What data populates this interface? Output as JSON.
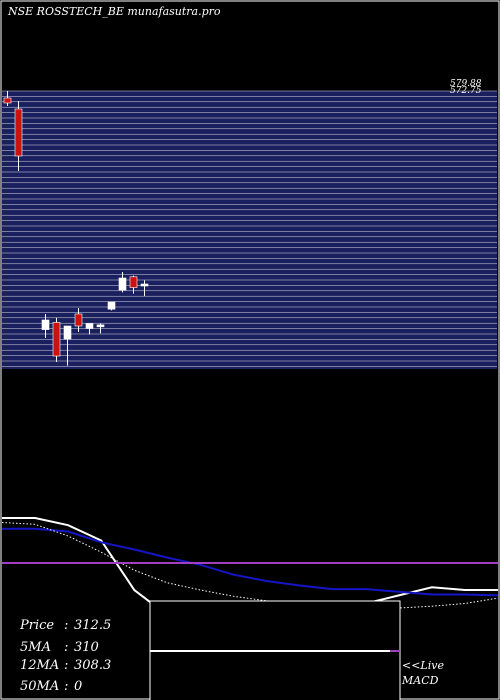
{
  "header": {
    "title": "NSE ROSSTECH_BE munafasutra.pro"
  },
  "chart_data": [
    {
      "type": "candlestick",
      "title": "NSE ROSSTECH_BE munafasutra.pro",
      "price_labels_top": [
        "579.88",
        "572.75"
      ],
      "candles": [
        {
          "open": 573,
          "high": 580,
          "low": 565,
          "close": 568,
          "color": "red"
        },
        {
          "open": 562,
          "high": 570,
          "low": 500,
          "close": 515,
          "color": "red"
        },
        {
          "open": 262,
          "high": 275,
          "low": 255,
          "close": 270,
          "color": "white"
        },
        {
          "open": 268,
          "high": 272,
          "low": 235,
          "close": 240,
          "color": "red"
        },
        {
          "open": 254,
          "high": 265,
          "low": 232,
          "close": 265,
          "color": "white"
        },
        {
          "open": 265,
          "high": 280,
          "low": 260,
          "close": 275,
          "color": "red"
        },
        {
          "open": 263,
          "high": 266,
          "low": 258,
          "close": 267,
          "color": "white"
        },
        {
          "open": 266,
          "high": 267,
          "low": 259,
          "close": 265,
          "color": "white"
        },
        {
          "open": 279,
          "high": 285,
          "low": 278,
          "close": 285,
          "color": "white"
        },
        {
          "open": 295,
          "high": 310,
          "low": 293,
          "close": 305,
          "color": "white"
        },
        {
          "open": 306,
          "high": 307,
          "low": 292,
          "close": 297,
          "color": "red"
        },
        {
          "open": 300,
          "high": 303,
          "low": 290,
          "close": 300,
          "color": "white"
        }
      ]
    },
    {
      "type": "line",
      "series": [
        {
          "color": "#ffffff",
          "style": "solid",
          "values": [
            8,
            8,
            7.2,
            5.5,
            0,
            -2.8,
            -4,
            -2.3,
            -2.3,
            -2.0,
            -2.1,
            -1.5,
            -0.6,
            0.3,
            0,
            0
          ]
        },
        {
          "color": "#1515c8",
          "style": "solid",
          "values": [
            6.8,
            6.8,
            6.5,
            5.3,
            4.5,
            3.6,
            2.8,
            1.7,
            1.0,
            0.5,
            0.1,
            0.1,
            -0.2,
            -0.5,
            -0.5,
            -0.6
          ]
        },
        {
          "color": "#ffffff",
          "style": "dotted",
          "values": [
            7.5,
            7.3,
            6.0,
            4.2,
            2.2,
            0.8,
            0.0,
            -0.7,
            -1.2,
            -1.6,
            -1.9,
            -2.0,
            -2.0,
            -1.8,
            -1.5,
            -0.9
          ]
        },
        {
          "color": "#a040c0",
          "style": "solid",
          "values": [
            3.0,
            3.0
          ]
        }
      ]
    }
  ],
  "info": {
    "price_label": "Price",
    "price_value": "312.5",
    "ma5_label": "5MA",
    "ma5_value": "310",
    "ma12_label": "12MA",
    "ma12_value": "308.3",
    "ma50_label": "50MA",
    "ma50_value": "0"
  },
  "macd_label_top": "<<Live",
  "macd_label_bottom": "MACD",
  "colors": {
    "background": "#000000",
    "band": "#1a1f5e",
    "band_line": "#ffffff",
    "candle_up": "#ffffff",
    "candle_down": "#cc1111",
    "macd_signal": "#1515c8",
    "zero_line": "#a040c0"
  }
}
